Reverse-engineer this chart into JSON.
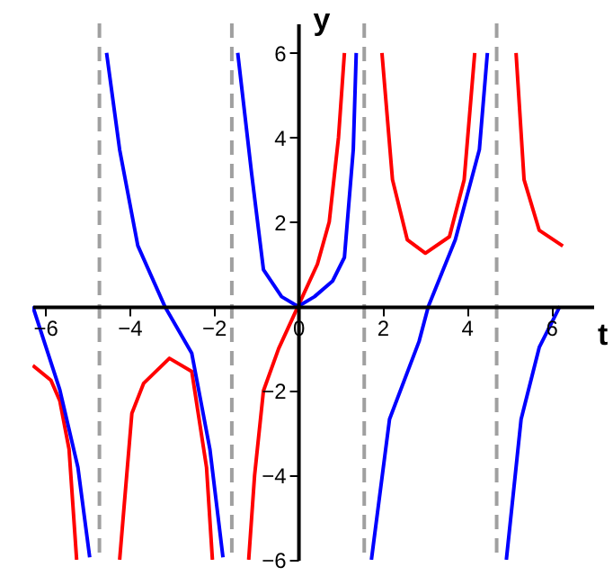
{
  "chart_data": {
    "type": "line",
    "xlabel": "t",
    "ylabel": "y",
    "xlim": [
      -6.3,
      7.0
    ],
    "ylim": [
      -6,
      6.7
    ],
    "xticks": [
      -6,
      -4,
      -2,
      0,
      2,
      4,
      6
    ],
    "yticks": [
      -6,
      -4,
      -2,
      2,
      4,
      6
    ],
    "grid": false,
    "series": [
      {
        "color": "#ff0000",
        "x": [
          -6.29,
          -5.86,
          -5.65,
          -5.43,
          -5.25,
          null,
          -4.23,
          -3.94,
          -3.66,
          -3.05,
          -2.52,
          -2.17,
          -2.03,
          null,
          -1.17,
          -1.03,
          -0.82,
          -0.46,
          0,
          0.46,
          0.74,
          0.96,
          1.1,
          null,
          1.99,
          2.24,
          2.59,
          3.02,
          3.59,
          3.94,
          4.19,
          null,
          5.17,
          5.36,
          5.72,
          6.28
        ],
        "values": [
          -1.4,
          -1.75,
          -2.23,
          -3.38,
          -6,
          null,
          -6,
          -2.53,
          -1.82,
          -1.23,
          -1.54,
          -3.81,
          -6,
          null,
          -6,
          -4,
          -2,
          -1.0,
          0,
          1.0,
          2,
          4,
          6,
          null,
          6,
          3.0,
          1.58,
          1.26,
          1.65,
          3.0,
          6,
          null,
          6,
          3.0,
          1.8,
          1.43
        ]
      },
      {
        "color": "#0000ff",
        "x": [
          -6.29,
          -5.65,
          -5.22,
          -4.94,
          null,
          -4.54,
          -4.23,
          -3.8,
          -3.16,
          -2.52,
          -2.09,
          -1.78,
          null,
          -1.43,
          -1.1,
          -0.82,
          -0.39,
          0,
          0.39,
          0.82,
          1.1,
          1.31,
          1.38,
          null,
          1.74,
          2.17,
          2.87,
          3.09,
          3.73,
          4.3,
          4.49,
          null,
          4.94,
          5.29,
          5.72,
          6.21
        ],
        "values": [
          0,
          -1.97,
          -3.81,
          -5.94,
          null,
          6,
          3.71,
          1.44,
          0,
          -1.11,
          -3.38,
          -5.94,
          null,
          6,
          3.14,
          0.87,
          0.23,
          0,
          0.23,
          0.6,
          1.16,
          3.71,
          6,
          null,
          -6,
          -2.67,
          -0.83,
          0,
          1.58,
          3.71,
          6,
          null,
          -6,
          -2.67,
          -0.97,
          0
        ]
      }
    ],
    "ref_lines": [
      {
        "axis": "x",
        "value": -4.71,
        "color": "#a0a0a0",
        "line_style": "dashed"
      },
      {
        "axis": "x",
        "value": -1.57,
        "color": "#a0a0a0",
        "line_style": "dashed"
      },
      {
        "axis": "x",
        "value": 1.57,
        "color": "#a0a0a0",
        "line_style": "dashed"
      },
      {
        "axis": "x",
        "value": 4.71,
        "color": "#a0a0a0",
        "line_style": "dashed"
      }
    ]
  }
}
